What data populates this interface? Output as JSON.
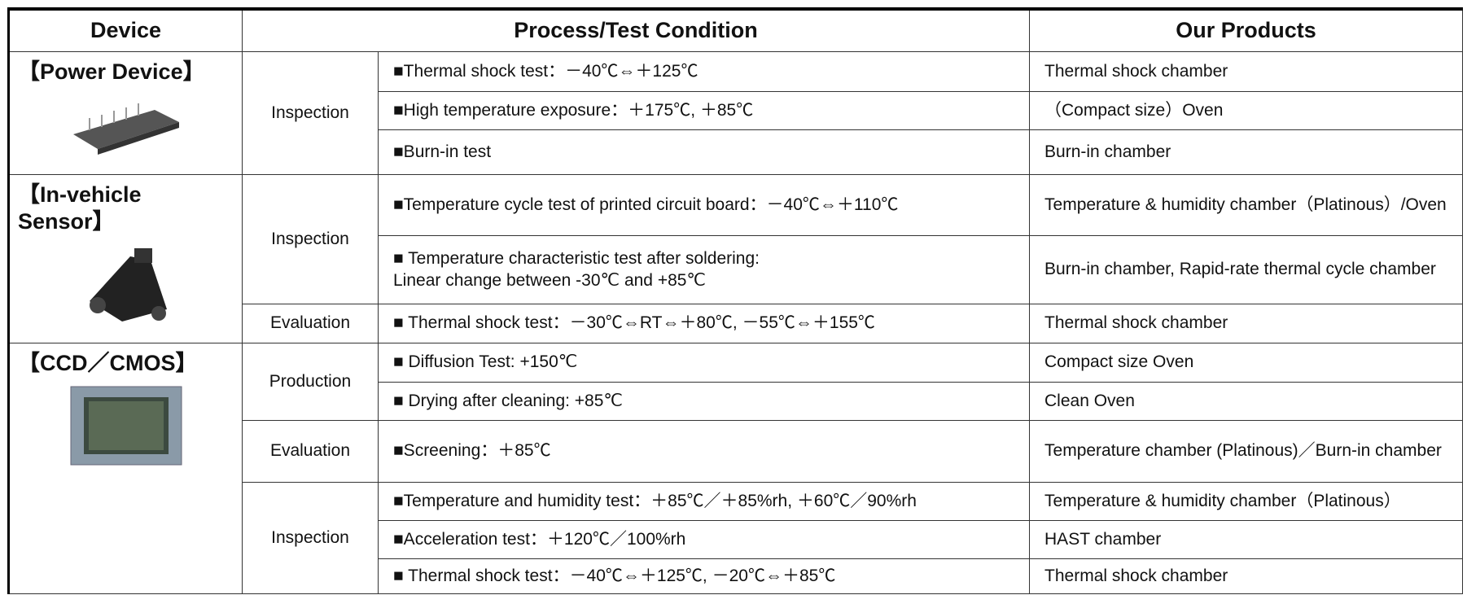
{
  "header": [
    "Device",
    "Process/Test Condition",
    "Our Products"
  ],
  "groups": [
    {
      "device": "【Power Device】",
      "stages": [
        {
          "label": "Inspection",
          "rows": [
            {
              "condition": "■Thermal shock test：－40℃⇔＋125℃",
              "product": "Thermal shock chamber"
            },
            {
              "condition": "■High temperature exposure：＋175℃, ＋85℃",
              "product": "（Compact size）Oven"
            },
            {
              "condition": "■Burn-in test",
              "product": "Burn-in chamber"
            }
          ]
        }
      ]
    },
    {
      "device": "【In-vehicle\nSensor】",
      "stages": [
        {
          "label": "Inspection",
          "rows": [
            {
              "condition": "■Temperature cycle test of printed circuit board：－40℃⇔＋110℃",
              "product": "Temperature & humidity chamber（Platinous）/Oven"
            },
            {
              "condition": "■ Temperature characteristic test after soldering:\nLinear change between -30℃ and +85℃",
              "product": "Burn-in chamber, Rapid-rate thermal cycle chamber"
            }
          ]
        },
        {
          "label": "Evaluation",
          "rows": [
            {
              "condition": "■ Thermal shock test：－30℃⇔RT⇔＋80℃, －55℃⇔＋155℃",
              "product": "Thermal shock chamber"
            }
          ]
        }
      ]
    },
    {
      "device": "【CCD／CMOS】",
      "stages": [
        {
          "label": "Production",
          "rows": [
            {
              "condition": "■ Diffusion Test: +150℃",
              "product": "Compact size Oven"
            },
            {
              "condition": "■ Drying after cleaning: +85℃",
              "product": "Clean Oven"
            }
          ]
        },
        {
          "label": "Evaluation",
          "rows": [
            {
              "condition": "■Screening：＋85℃",
              "product": "Temperature chamber (Platinous)／Burn-in chamber"
            }
          ]
        },
        {
          "label": "Inspection",
          "rows": [
            {
              "condition": "■Temperature and humidity test：＋85℃／＋85%rh, ＋60℃／90%rh",
              "product": "Temperature & humidity chamber（Platinous）"
            },
            {
              "condition": "■Acceleration test：＋120℃／100%rh",
              "product": "HAST chamber"
            },
            {
              "condition": "■ Thermal shock test：－40℃⇔＋125℃, －20℃⇔＋85℃",
              "product": "Thermal shock chamber"
            }
          ]
        }
      ]
    }
  ]
}
